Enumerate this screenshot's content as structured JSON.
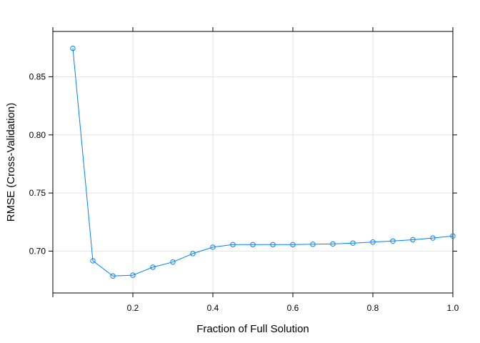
{
  "chart_data": {
    "type": "line",
    "title": "",
    "xlabel": "Fraction of Full Solution",
    "ylabel": "RMSE (Cross-Validation)",
    "xlim": [
      0.0,
      1.0
    ],
    "ylim": [
      0.664,
      0.889
    ],
    "x_ticks": [
      0.2,
      0.4,
      0.6,
      0.8,
      1.0
    ],
    "x_tick_labels": [
      "0.2",
      "0.4",
      "0.6",
      "0.8",
      "1.0"
    ],
    "y_ticks": [
      0.7,
      0.75,
      0.8,
      0.85
    ],
    "y_tick_labels": [
      "0.70",
      "0.75",
      "0.80",
      "0.85"
    ],
    "grid": true,
    "legend": "none",
    "color": "#0080ff",
    "series": [
      {
        "x": [
          0.05,
          0.1,
          0.15,
          0.2,
          0.25,
          0.3,
          0.35,
          0.4,
          0.45,
          0.5,
          0.55,
          0.6,
          0.65,
          0.7,
          0.75,
          0.8,
          0.85,
          0.9,
          0.95,
          1.0
        ],
        "values": [
          0.8745,
          0.6917,
          0.6786,
          0.6793,
          0.6862,
          0.6906,
          0.6979,
          0.7034,
          0.7056,
          0.7056,
          0.7056,
          0.7056,
          0.7059,
          0.7062,
          0.7069,
          0.7078,
          0.7087,
          0.7098,
          0.7113,
          0.713
        ]
      }
    ]
  }
}
